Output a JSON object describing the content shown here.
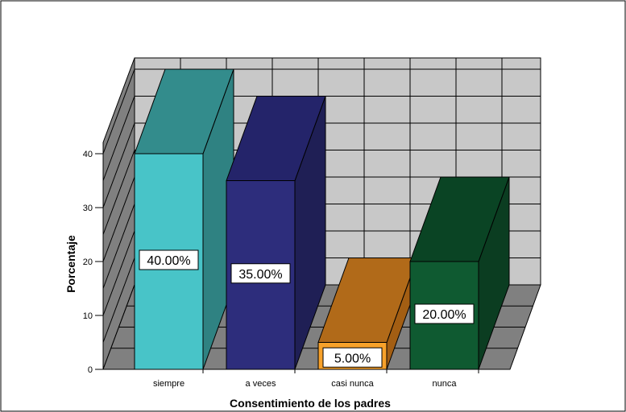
{
  "chart_data": {
    "type": "bar",
    "categories": [
      "siempre",
      "a veces",
      "casi nunca",
      "nunca"
    ],
    "values": [
      40,
      35,
      5,
      20
    ],
    "data_labels": [
      "40.00%",
      "35.00%",
      "5.00%",
      "20.00%"
    ],
    "xlabel": "Consentimiento de los padres",
    "ylabel": "Porcentaje",
    "ylim": [
      0,
      40
    ],
    "yticks": [
      0,
      10,
      20,
      30,
      40
    ],
    "grid": true,
    "style": "3d",
    "colors": [
      {
        "front": "#48c4c8",
        "side": "#2f8282",
        "top": "#338c8c"
      },
      {
        "front": "#2d2d7c",
        "side": "#1f1f55",
        "top": "#24246a"
      },
      {
        "front": "#f7a12a",
        "side": "#a35e13",
        "top": "#b16a19"
      },
      {
        "front": "#0f5a31",
        "side": "#0b3d21",
        "top": "#0a4424"
      }
    ]
  }
}
